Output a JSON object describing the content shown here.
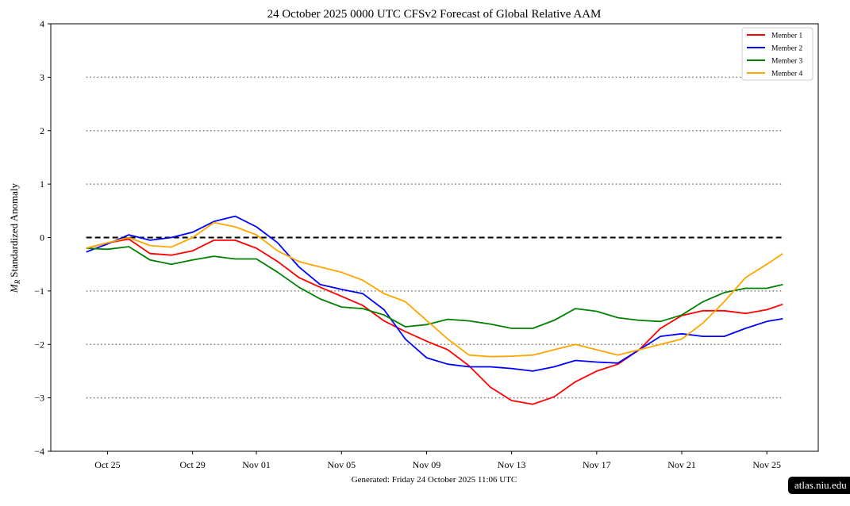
{
  "chart_data": {
    "type": "line",
    "title": "24  October  2025 0000 UTC   CFSv2 Forecast of Global Relative AAM",
    "ylabel_symbol": "M",
    "ylabel_subscript": "R",
    "ylabel": "Standardized Anomaly",
    "xlabel": "",
    "footer": "Generated: Friday  24  October  2025  11:06 UTC",
    "ylim": [
      -4,
      4
    ],
    "xlim": [
      "2025-10-22T08:00",
      "2025-11-27T10:00"
    ],
    "yticks": [
      -4,
      -3,
      -2,
      -1,
      0,
      1,
      2,
      3,
      4
    ],
    "ytick_labels": [
      "−4",
      "−3",
      "−2",
      "−1",
      "0",
      "1",
      "2",
      "3",
      "4"
    ],
    "xticks": [
      "2025-10-25",
      "2025-10-29",
      "2025-11-01",
      "2025-11-05",
      "2025-11-09",
      "2025-11-13",
      "2025-11-17",
      "2025-11-21",
      "2025-11-25"
    ],
    "xtick_labels": [
      "Oct 25",
      "Oct 29",
      "Nov 01",
      "Nov 05",
      "Nov 09",
      "Nov 13",
      "Nov 17",
      "Nov 21",
      "Nov 25"
    ],
    "reference_lines": {
      "dashed": [
        0
      ],
      "dotted": [
        -3,
        -2,
        -1,
        1,
        2,
        3
      ]
    },
    "legend_position": "top-right",
    "x": [
      "2025-10-24",
      "2025-10-25",
      "2025-10-26",
      "2025-10-27",
      "2025-10-28",
      "2025-10-29",
      "2025-10-30",
      "2025-10-31",
      "2025-11-01",
      "2025-11-02",
      "2025-11-03",
      "2025-11-04",
      "2025-11-05",
      "2025-11-06",
      "2025-11-07",
      "2025-11-08",
      "2025-11-09",
      "2025-11-10",
      "2025-11-11",
      "2025-11-12",
      "2025-11-13",
      "2025-11-14",
      "2025-11-15",
      "2025-11-16",
      "2025-11-17",
      "2025-11-18",
      "2025-11-19",
      "2025-11-20",
      "2025-11-21",
      "2025-11-22",
      "2025-11-23",
      "2025-11-24",
      "2025-11-25",
      "2025-11-25T18:00"
    ],
    "series": [
      {
        "name": "Member 1",
        "color": "#ff0000",
        "values": [
          -0.2,
          -0.1,
          -0.03,
          -0.3,
          -0.33,
          -0.25,
          -0.05,
          -0.05,
          -0.2,
          -0.45,
          -0.75,
          -0.93,
          -1.1,
          -1.27,
          -1.56,
          -1.76,
          -1.94,
          -2.1,
          -2.4,
          -2.8,
          -3.05,
          -3.12,
          -2.98,
          -2.7,
          -2.5,
          -2.37,
          -2.1,
          -1.7,
          -1.46,
          -1.37,
          -1.37,
          -1.42,
          -1.35,
          -1.25
        ]
      },
      {
        "name": "Member 2",
        "color": "#0000ff",
        "values": [
          -0.27,
          -0.12,
          0.05,
          -0.05,
          0.0,
          0.1,
          0.3,
          0.4,
          0.2,
          -0.1,
          -0.55,
          -0.88,
          -0.97,
          -1.05,
          -1.35,
          -1.9,
          -2.25,
          -2.37,
          -2.42,
          -2.42,
          -2.45,
          -2.5,
          -2.42,
          -2.3,
          -2.33,
          -2.35,
          -2.1,
          -1.85,
          -1.8,
          -1.85,
          -1.85,
          -1.7,
          -1.57,
          -1.52
        ]
      },
      {
        "name": "Member 3",
        "color": "#008000",
        "values": [
          -0.2,
          -0.22,
          -0.17,
          -0.42,
          -0.5,
          -0.42,
          -0.35,
          -0.4,
          -0.4,
          -0.65,
          -0.93,
          -1.15,
          -1.3,
          -1.33,
          -1.45,
          -1.67,
          -1.63,
          -1.53,
          -1.56,
          -1.62,
          -1.7,
          -1.7,
          -1.55,
          -1.33,
          -1.38,
          -1.5,
          -1.55,
          -1.57,
          -1.45,
          -1.2,
          -1.03,
          -0.95,
          -0.95,
          -0.88
        ]
      },
      {
        "name": "Member 4",
        "color": "#ffa500",
        "values": [
          -0.2,
          -0.1,
          0.0,
          -0.15,
          -0.18,
          0.0,
          0.28,
          0.2,
          0.05,
          -0.25,
          -0.45,
          -0.55,
          -0.65,
          -0.8,
          -1.05,
          -1.2,
          -1.55,
          -1.9,
          -2.2,
          -2.23,
          -2.22,
          -2.2,
          -2.1,
          -2.0,
          -2.1,
          -2.2,
          -2.1,
          -2.0,
          -1.9,
          -1.6,
          -1.2,
          -0.75,
          -0.5,
          -0.3
        ]
      }
    ]
  },
  "badge": "atlas.niu.edu"
}
